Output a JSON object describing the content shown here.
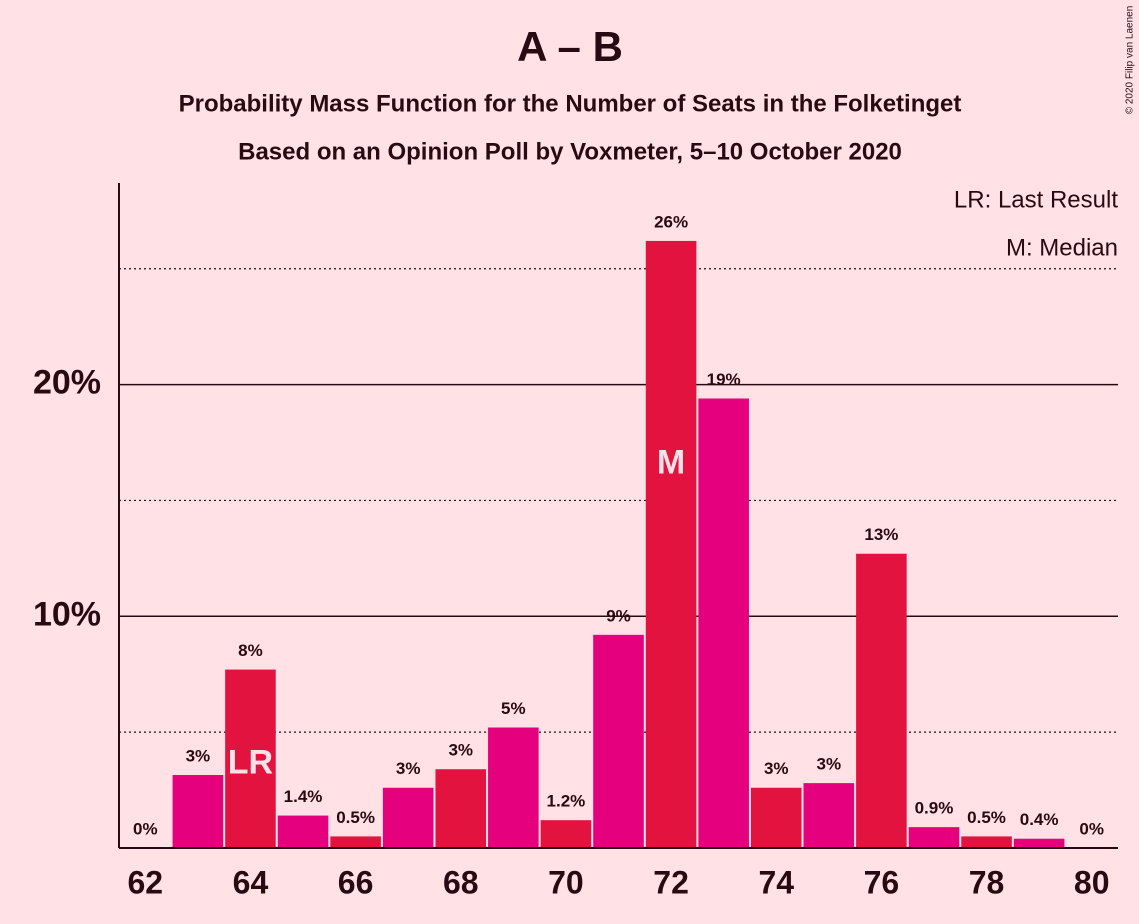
{
  "chart_data": {
    "type": "bar",
    "title": "A – B",
    "subtitle": "Probability Mass Function for the Number of Seats in the Folketinget",
    "subtitle2": "Based on an Opinion Poll by Voxmeter, 5–10 October 2020",
    "copyright": "© 2020 Filip van Laenen",
    "legend": [
      "LR: Last Result",
      "M: Median"
    ],
    "categories": [
      62,
      null,
      64,
      null,
      66,
      null,
      68,
      null,
      70,
      null,
      72,
      null,
      74,
      null,
      76,
      null,
      78,
      null,
      80
    ],
    "values": [
      0,
      3.15,
      7.7,
      1.4,
      0.5,
      2.6,
      3.4,
      5.2,
      1.2,
      9.2,
      26.2,
      19.4,
      2.6,
      2.8,
      12.7,
      0.9,
      0.5,
      0.4,
      0
    ],
    "value_labels": [
      "0%",
      "3%",
      "8%",
      "1.4%",
      "0.5%",
      "3%",
      "3%",
      "5%",
      "1.2%",
      "9%",
      "26%",
      "19%",
      "3%",
      "3%",
      "13%",
      "0.9%",
      "0.5%",
      "0.4%",
      "0%"
    ],
    "colors": [
      "#e3133f",
      "#e5007e",
      "#e3133f",
      "#e5007e",
      "#e3133f",
      "#e5007e",
      "#e3133f",
      "#e5007e",
      "#e3133f",
      "#e5007e",
      "#e3133f",
      "#e5007e",
      "#e3133f",
      "#e5007e",
      "#e3133f",
      "#e5007e",
      "#e3133f",
      "#e5007e",
      "#e3133f"
    ],
    "markers": [
      {
        "label": "LR",
        "index": 2
      },
      {
        "label": "M",
        "index": 10
      }
    ],
    "ylim": [
      0,
      28.7
    ],
    "yticks": [
      {
        "value": 10,
        "label": "10%"
      },
      {
        "value": 20,
        "label": "20%"
      }
    ],
    "minor_grid": [
      5,
      15,
      25
    ]
  }
}
